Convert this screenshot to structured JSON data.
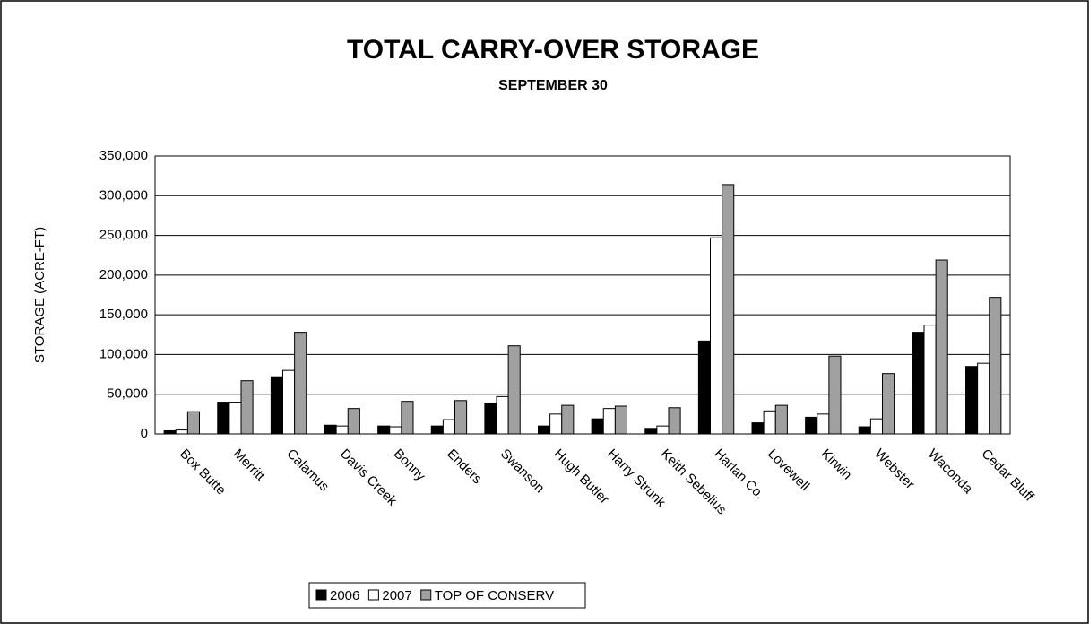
{
  "chart_data": {
    "type": "bar",
    "title": "TOTAL CARRY-OVER STORAGE",
    "subtitle": "SEPTEMBER 30",
    "y_label": "STORAGE (ACRE-FT)",
    "categories": [
      "Box Butte",
      "Merritt",
      "Calamus",
      "Davis Creek",
      "Bonny",
      "Enders",
      "Swanson",
      "Hugh Butler",
      "Harry Strunk",
      "Keith Sebelius",
      "Harlan Co.",
      "Lovewell",
      "Kirwin",
      "Webster",
      "Waconda",
      "Cedar Bluff"
    ],
    "series": [
      {
        "name": "2006",
        "color": "#000000",
        "values": [
          4000,
          40000,
          72000,
          11000,
          10000,
          10000,
          39000,
          10000,
          19000,
          7000,
          117000,
          14000,
          21000,
          9000,
          128000,
          85000
        ]
      },
      {
        "name": "2007",
        "color": "#ffffff",
        "values": [
          5000,
          40000,
          80000,
          10000,
          9000,
          18000,
          47000,
          25000,
          32000,
          10000,
          247000,
          29000,
          25000,
          19000,
          137000,
          89000
        ]
      },
      {
        "name": "TOP OF CONSERV",
        "color": "#a0a0a0",
        "values": [
          28000,
          67000,
          128000,
          32000,
          41000,
          42000,
          111000,
          36000,
          35000,
          33000,
          314000,
          36000,
          98000,
          76000,
          219000,
          172000
        ]
      }
    ],
    "ylim": [
      0,
      350000
    ],
    "yticks": [
      0,
      {
        "value": 50000,
        "label": "50,000"
      },
      {
        "value": 100000,
        "label": "100,000"
      },
      {
        "value": 150000,
        "label": "150,000"
      },
      {
        "value": 200000,
        "label": "200,000"
      },
      {
        "value": 250000,
        "label": "250,000"
      },
      {
        "value": 300000,
        "label": "300,000"
      },
      {
        "value": 350000,
        "label": "350,000"
      }
    ],
    "grid": true,
    "legend": "bottom"
  }
}
